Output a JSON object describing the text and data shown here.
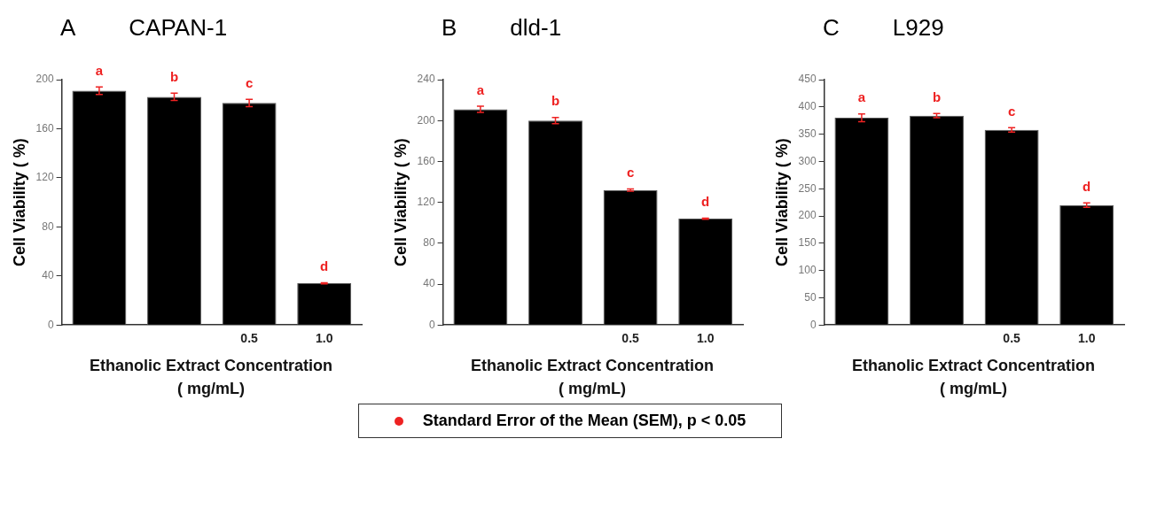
{
  "chart_data": [
    {
      "type": "bar",
      "title": "CAPAN-1",
      "annotations": [
        "A"
      ],
      "xlabel": "Ethanolic Extract Concentration\n( mg/mL)",
      "ylabel": "Cell Viability ( %)",
      "categories": [
        null,
        null,
        "0.5",
        "1.0"
      ],
      "values": [
        191,
        186,
        181,
        34
      ],
      "errors": [
        3,
        3,
        3,
        0.5
      ],
      "value_labels": [
        "a",
        "b",
        "c",
        "d"
      ],
      "color": "#000000",
      "ylim": [
        0,
        200
      ],
      "yticks": [
        0,
        40,
        80,
        120,
        160,
        200
      ],
      "grid": false
    },
    {
      "type": "bar",
      "title": "dld-1",
      "annotations": [
        "B"
      ],
      "xlabel": "Ethanolic Extract Concentration\n( mg/mL)",
      "ylabel": "Cell Viability ( %)",
      "categories": [
        null,
        null,
        "0.5",
        "1.0"
      ],
      "values": [
        211,
        200,
        132,
        104
      ],
      "errors": [
        3,
        3,
        1,
        0.5
      ],
      "value_labels": [
        "a",
        "b",
        "c",
        "d"
      ],
      "color": "#000000",
      "ylim": [
        0,
        240
      ],
      "yticks": [
        0,
        40,
        80,
        120,
        160,
        200,
        240
      ],
      "grid": false
    },
    {
      "type": "bar",
      "title": "L929",
      "annotations": [
        "C"
      ],
      "xlabel": "Ethanolic Extract Concentration\n( mg/mL)",
      "ylabel": "Cell Viability ( %)",
      "categories": [
        null,
        null,
        "0.5",
        "1.0"
      ],
      "values": [
        380,
        384,
        358,
        220
      ],
      "errors": [
        7,
        4,
        4,
        4
      ],
      "value_labels": [
        "a",
        "b",
        "c",
        "d"
      ],
      "color": "#000000",
      "ylim": [
        0,
        450
      ],
      "yticks": [
        0,
        50,
        100,
        150,
        200,
        250,
        300,
        350,
        400,
        450
      ],
      "grid": false
    },
    {
      "type": "other",
      "title": "Standard Error of the Mean (SEM), p < 0.05"
    }
  ]
}
